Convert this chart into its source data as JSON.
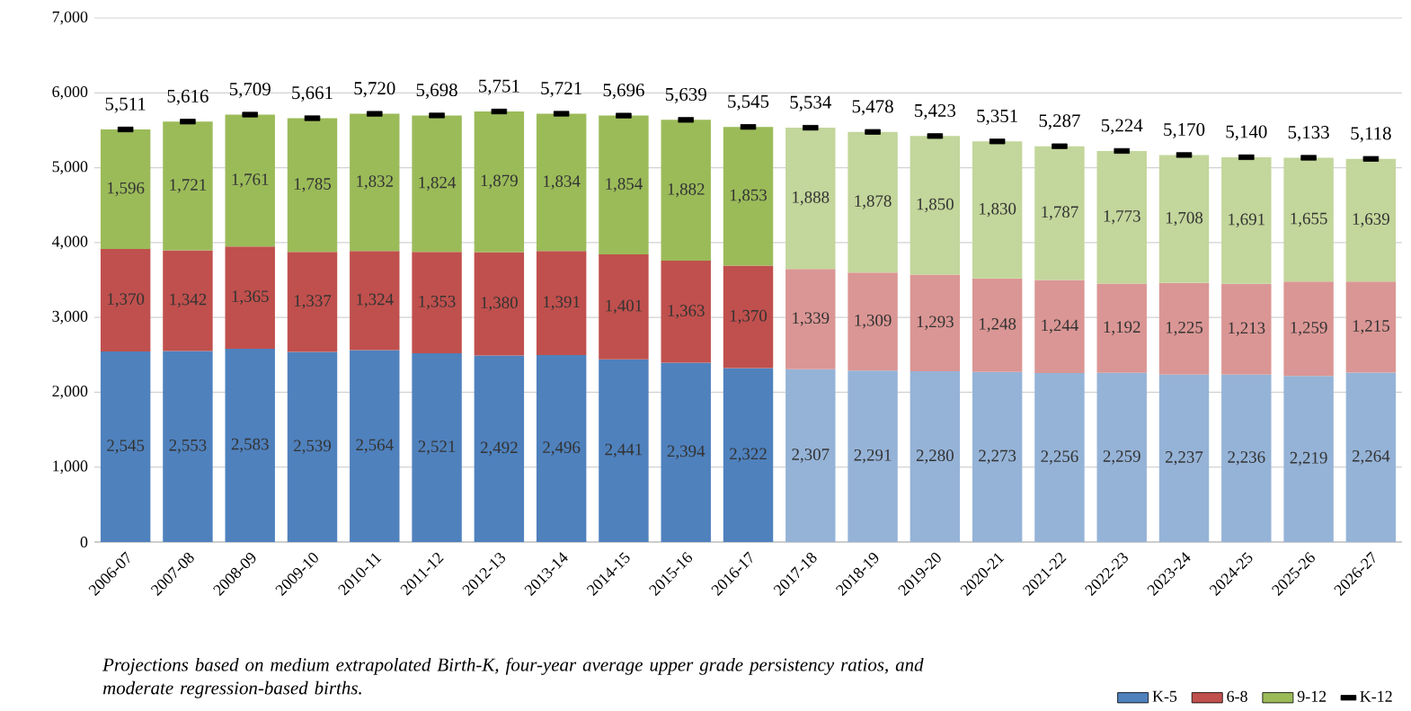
{
  "chart_data": {
    "type": "bar",
    "stacked": true,
    "grid": "y",
    "legend": "bottom right",
    "categories": [
      "2006-07",
      "2007-08",
      "2008-09",
      "2009-10",
      "2010-11",
      "2011-12",
      "2012-13",
      "2013-14",
      "2014-15",
      "2015-16",
      "2016-17",
      "2017-18",
      "2018-19",
      "2019-20",
      "2020-21",
      "2021-22",
      "2022-23",
      "2023-24",
      "2024-25",
      "2025-26",
      "2026-27"
    ],
    "ylim": [
      0,
      7000
    ],
    "yticks": [
      {
        "value": 0,
        "label": "0"
      },
      {
        "value": 1000,
        "label": "1,000"
      },
      {
        "value": 2000,
        "label": "2,000"
      },
      {
        "value": 3000,
        "label": "3,000"
      },
      {
        "value": 4000,
        "label": "4,000"
      },
      {
        "value": 5000,
        "label": "5,000"
      },
      {
        "value": 6000,
        "label": "6,000"
      },
      {
        "value": 7000,
        "label": "7,000"
      }
    ],
    "series": [
      {
        "name": "K-5",
        "color": "#4f81bd",
        "colors": [
          "#4f81bd",
          "#4f81bd",
          "#4f81bd",
          "#4f81bd",
          "#4f81bd",
          "#4f81bd",
          "#4f81bd",
          "#4f81bd",
          "#4f81bd",
          "#4f81bd",
          "#4f81bd",
          "#95b3d7",
          "#95b3d7",
          "#95b3d7",
          "#95b3d7",
          "#95b3d7",
          "#95b3d7",
          "#95b3d7",
          "#95b3d7",
          "#95b3d7",
          "#95b3d7"
        ],
        "values": [
          2545,
          2553,
          2583,
          2539,
          2564,
          2521,
          2492,
          2496,
          2441,
          2394,
          2322,
          2307,
          2291,
          2280,
          2273,
          2256,
          2259,
          2237,
          2236,
          2219,
          2264
        ],
        "value_labels": [
          "2,545",
          "2,553",
          "2,583",
          "2,539",
          "2,564",
          "2,521",
          "2,492",
          "2,496",
          "2,441",
          "2,394",
          "2,322",
          "2,307",
          "2,291",
          "2,280",
          "2,273",
          "2,256",
          "2,259",
          "2,237",
          "2,236",
          "2,219",
          "2,264"
        ]
      },
      {
        "name": "6-8",
        "color": "#c0504d",
        "colors": [
          "#c0504d",
          "#c0504d",
          "#c0504d",
          "#c0504d",
          "#c0504d",
          "#c0504d",
          "#c0504d",
          "#c0504d",
          "#c0504d",
          "#c0504d",
          "#c0504d",
          "#da9694",
          "#da9694",
          "#da9694",
          "#da9694",
          "#da9694",
          "#da9694",
          "#da9694",
          "#da9694",
          "#da9694",
          "#da9694"
        ],
        "values": [
          1370,
          1342,
          1365,
          1337,
          1324,
          1353,
          1380,
          1391,
          1401,
          1363,
          1370,
          1339,
          1309,
          1293,
          1248,
          1244,
          1192,
          1225,
          1213,
          1259,
          1215
        ],
        "value_labels": [
          "1,370",
          "1,342",
          "1,365",
          "1,337",
          "1,324",
          "1,353",
          "1,380",
          "1,391",
          "1,401",
          "1,363",
          "1,370",
          "1,339",
          "1,309",
          "1,293",
          "1,248",
          "1,244",
          "1,192",
          "1,225",
          "1,213",
          "1,259",
          "1,215"
        ]
      },
      {
        "name": "9-12",
        "color": "#9bbb59",
        "colors": [
          "#9bbb59",
          "#9bbb59",
          "#9bbb59",
          "#9bbb59",
          "#9bbb59",
          "#9bbb59",
          "#9bbb59",
          "#9bbb59",
          "#9bbb59",
          "#9bbb59",
          "#9bbb59",
          "#c3d69b",
          "#c3d69b",
          "#c3d69b",
          "#c3d69b",
          "#c3d69b",
          "#c3d69b",
          "#c3d69b",
          "#c3d69b",
          "#c3d69b",
          "#c3d69b"
        ],
        "values": [
          1596,
          1721,
          1761,
          1785,
          1832,
          1824,
          1879,
          1834,
          1854,
          1882,
          1853,
          1888,
          1878,
          1850,
          1830,
          1787,
          1773,
          1708,
          1691,
          1655,
          1639
        ],
        "value_labels": [
          "1,596",
          "1,721",
          "1,761",
          "1,785",
          "1,832",
          "1,824",
          "1,879",
          "1,834",
          "1,854",
          "1,882",
          "1,853",
          "1,888",
          "1,878",
          "1,850",
          "1,830",
          "1,787",
          "1,773",
          "1,708",
          "1,691",
          "1,655",
          "1,639"
        ]
      },
      {
        "name": "K-12",
        "type": "scatter",
        "marker": "square",
        "color": "#000000",
        "values": [
          5511,
          5616,
          5709,
          5661,
          5720,
          5698,
          5751,
          5721,
          5696,
          5639,
          5545,
          5534,
          5478,
          5423,
          5351,
          5287,
          5224,
          5170,
          5140,
          5133,
          5118
        ],
        "value_labels": [
          "5,511",
          "5,616",
          "5,709",
          "5,661",
          "5,720",
          "5,698",
          "5,751",
          "5,721",
          "5,696",
          "5,639",
          "5,545",
          "5,534",
          "5,478",
          "5,423",
          "5,351",
          "5,287",
          "5,224",
          "5,170",
          "5,140",
          "5,133",
          "5,118"
        ]
      }
    ],
    "annotations": [
      "Projections based on medium extrapolated Birth-K, four-year average upper grade persistency ratios, and moderate regression-based births."
    ]
  }
}
